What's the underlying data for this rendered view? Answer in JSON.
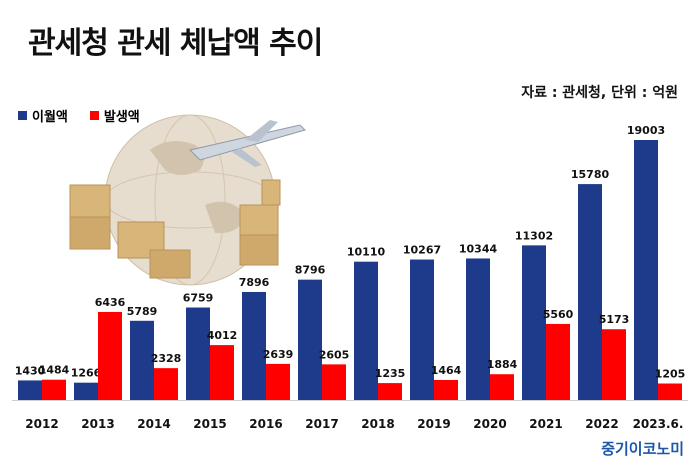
{
  "title": "관세청 관세 체납액 추이",
  "source_note": "자료 : 관세청, 단위 : 억원",
  "logo_text": "중기이코노미",
  "colors": {
    "carryover": "#1e3a8a",
    "new": "#ff0000"
  },
  "chart_data": {
    "type": "bar",
    "title": "관세청 관세 체납액 추이",
    "xlabel": "",
    "ylabel": "",
    "ylim": [
      0,
      19003
    ],
    "grid": false,
    "legend_position": "top-left",
    "categories": [
      "2012",
      "2013",
      "2014",
      "2015",
      "2016",
      "2017",
      "2018",
      "2019",
      "2020",
      "2021",
      "2022",
      "2023.6."
    ],
    "series": [
      {
        "name": "이월액",
        "values": [
          1430,
          1266,
          5789,
          6759,
          7896,
          8796,
          10110,
          10267,
          10344,
          11302,
          15780,
          19003
        ]
      },
      {
        "name": "발생액",
        "values": [
          1484,
          6436,
          2328,
          4012,
          2639,
          2605,
          1235,
          1464,
          1884,
          5560,
          5173,
          1205
        ]
      }
    ]
  }
}
